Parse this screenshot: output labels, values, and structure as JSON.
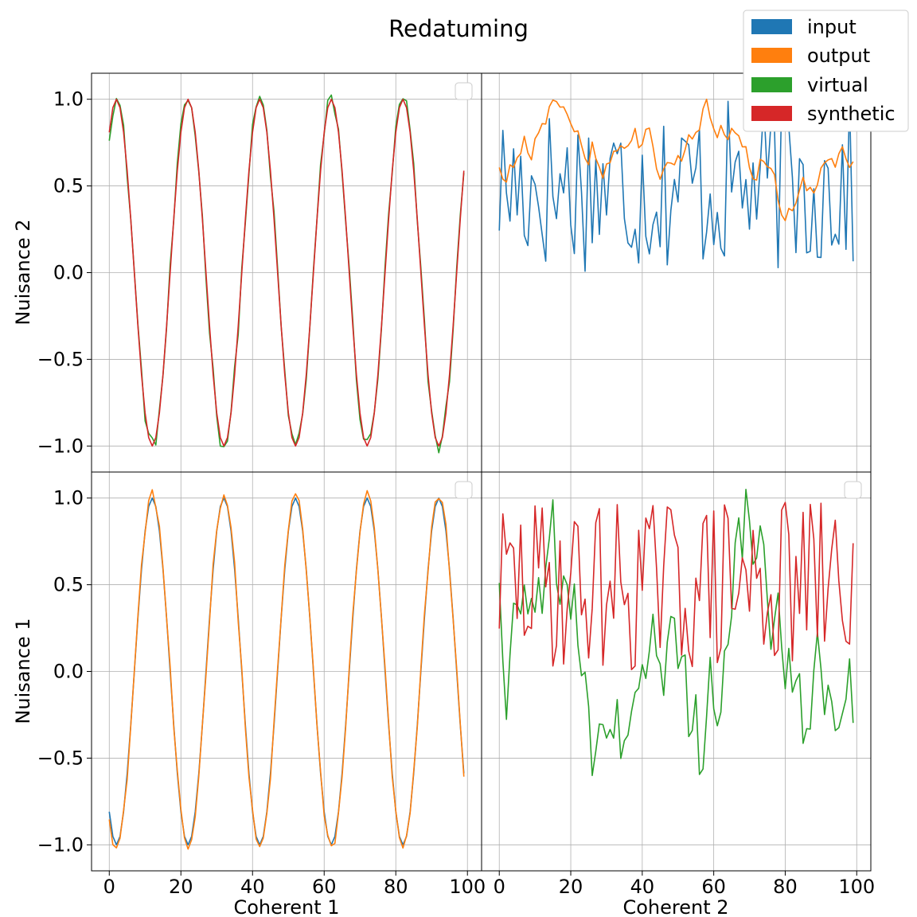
{
  "figure": {
    "title": "Redatuming",
    "legend": {
      "placement": "top-right",
      "entries": [
        {
          "label": "input",
          "color": "#1f77b4"
        },
        {
          "label": "output",
          "color": "#ff7f0e"
        },
        {
          "label": "virtual",
          "color": "#2ca02c"
        },
        {
          "label": "synthetic",
          "color": "#d62728"
        }
      ]
    },
    "col_labels": [
      "Coherent 1",
      "Coherent 2"
    ],
    "row_labels": [
      "Nuisance 2",
      "Nuisance 1"
    ]
  },
  "chart_data": [
    {
      "type": "line",
      "panel": "row1-col1",
      "xlabel": "",
      "ylabel": "Nuisance 2",
      "xlim": [
        -4.95,
        103.95
      ],
      "ylim": [
        -1.15,
        1.15
      ],
      "xticks": [],
      "yticks": [
        -1.0,
        -0.5,
        0.0,
        0.5,
        1.0
      ],
      "ytick_labels": [
        "−1.0",
        "−0.5",
        "0.0",
        "0.5",
        "1.0"
      ],
      "grid": true,
      "series": [
        {
          "name": "virtual",
          "color": "#2ca02c",
          "generator": {
            "kind": "sin",
            "amp": 1.0,
            "phase_deg": 54,
            "step_deg": 18,
            "n": 100,
            "jitter": 0.05
          }
        },
        {
          "name": "synthetic",
          "color": "#d62728",
          "generator": {
            "kind": "sin",
            "amp": 1.0,
            "phase_deg": 54,
            "step_deg": 18,
            "n": 100,
            "jitter": 0.0
          }
        }
      ]
    },
    {
      "type": "line",
      "panel": "row1-col2",
      "xlabel": "",
      "ylabel": "",
      "xlim": [
        -4.95,
        103.95
      ],
      "ylim": [
        -1.15,
        1.15
      ],
      "xticks": [],
      "yticks": [],
      "grid": true,
      "series": [
        {
          "name": "input",
          "color": "#1f77b4",
          "generator": {
            "kind": "noise",
            "lo": 0.0,
            "hi": 1.0,
            "n": 100,
            "seed": 17
          }
        },
        {
          "name": "output",
          "color": "#ff7f0e",
          "generator": {
            "kind": "smooth",
            "lo": 0.3,
            "hi": 1.0,
            "n": 100,
            "seed": 41
          }
        }
      ]
    },
    {
      "type": "line",
      "panel": "row2-col1",
      "xlabel": "Coherent 1",
      "ylabel": "Nuisance 1",
      "xlim": [
        -4.95,
        103.95
      ],
      "ylim": [
        -1.15,
        1.15
      ],
      "xticks": [
        0,
        20,
        40,
        60,
        80,
        100
      ],
      "xtick_labels": [
        "0",
        "20",
        "40",
        "60",
        "80",
        "100"
      ],
      "yticks": [
        -1.0,
        -0.5,
        0.0,
        0.5,
        1.0
      ],
      "ytick_labels": [
        "−1.0",
        "−0.5",
        "0.0",
        "0.5",
        "1.0"
      ],
      "grid": true,
      "series": [
        {
          "name": "input",
          "color": "#1f77b4",
          "generator": {
            "kind": "sin",
            "amp": 1.0,
            "phase_deg": -126,
            "step_deg": 18,
            "n": 100,
            "jitter": 0.0
          }
        },
        {
          "name": "output",
          "color": "#ff7f0e",
          "generator": {
            "kind": "sin",
            "amp": 1.02,
            "phase_deg": -126,
            "step_deg": 18,
            "n": 100,
            "jitter": 0.03
          }
        }
      ]
    },
    {
      "type": "line",
      "panel": "row2-col2",
      "xlabel": "Coherent 2",
      "ylabel": "",
      "xlim": [
        -4.95,
        103.95
      ],
      "ylim": [
        -1.15,
        1.15
      ],
      "xticks": [
        0,
        20,
        40,
        60,
        80,
        100
      ],
      "xtick_labels": [
        "0",
        "20",
        "40",
        "60",
        "80",
        "100"
      ],
      "yticks": [],
      "grid": true,
      "series": [
        {
          "name": "virtual",
          "color": "#2ca02c",
          "generator": {
            "kind": "smooth",
            "lo": -0.6,
            "hi": 1.05,
            "n": 100,
            "seed": 7
          }
        },
        {
          "name": "synthetic",
          "color": "#d62728",
          "generator": {
            "kind": "noise",
            "lo": 0.0,
            "hi": 1.0,
            "n": 100,
            "seed": 29
          }
        }
      ]
    }
  ]
}
